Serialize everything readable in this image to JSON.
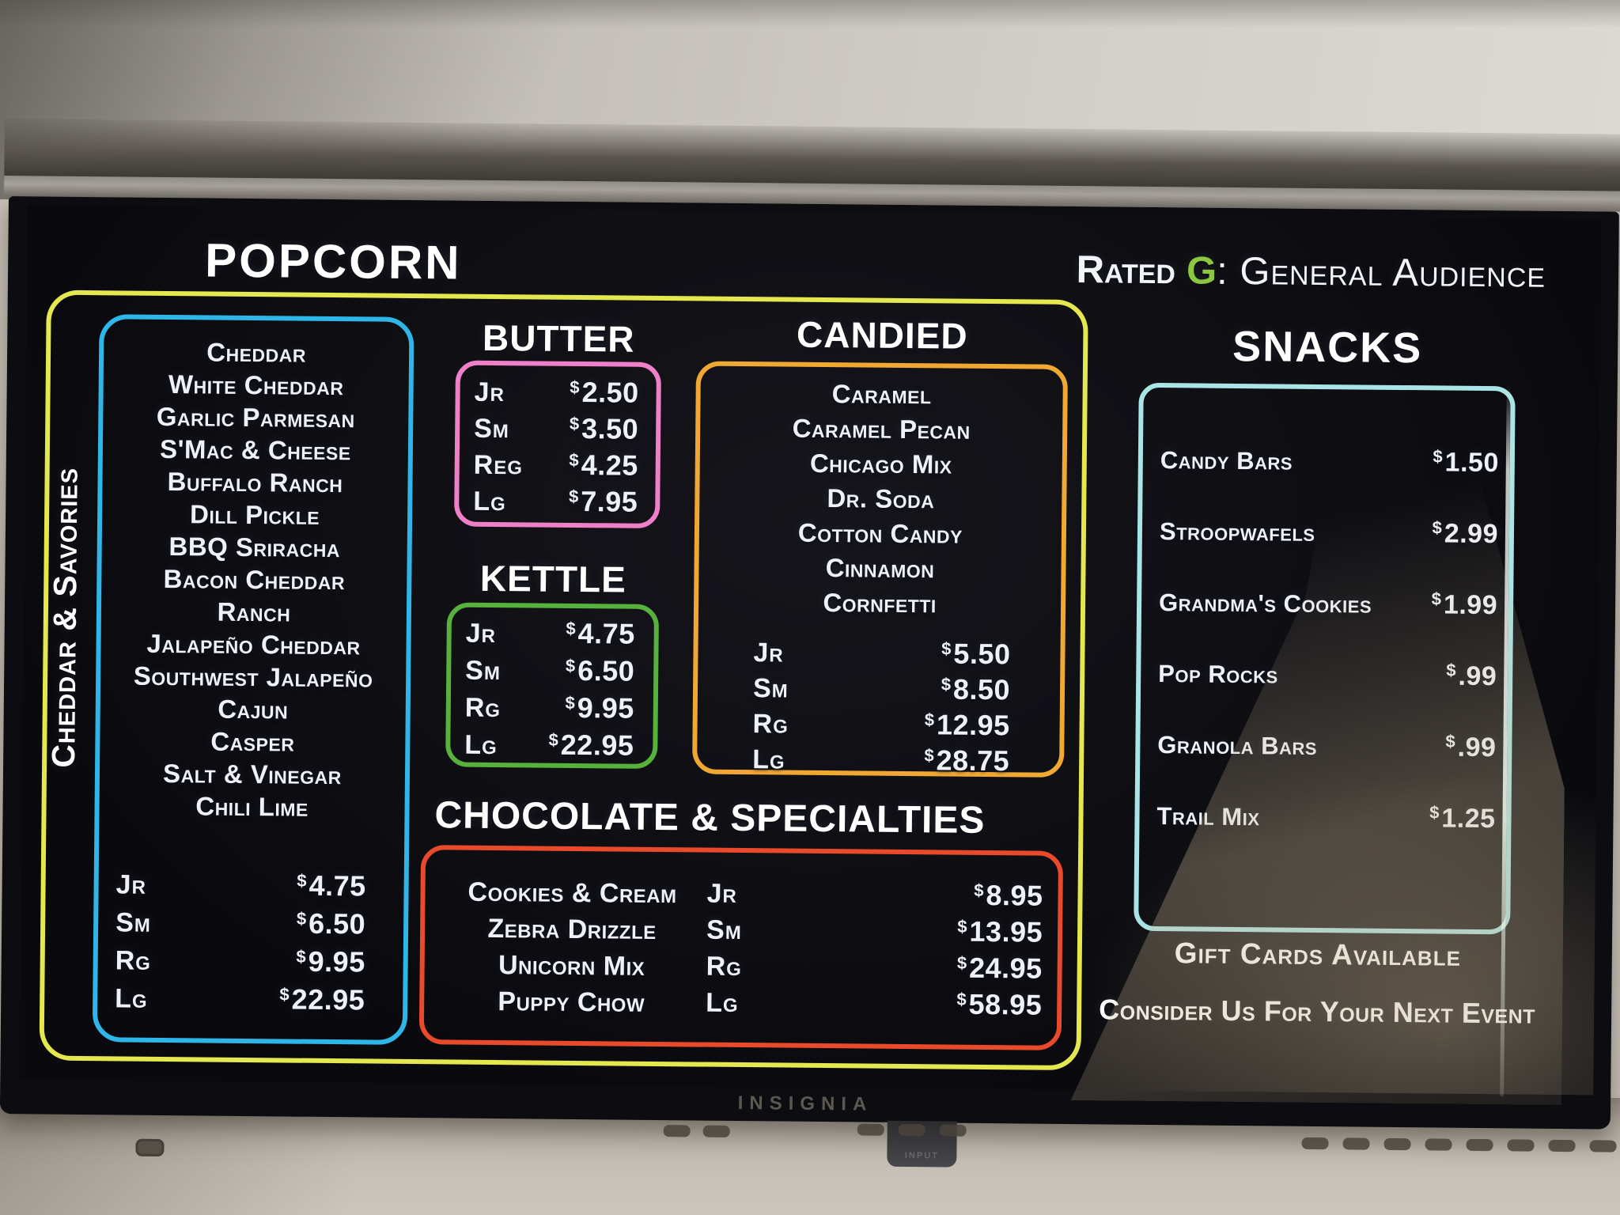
{
  "currency": "$",
  "colors": {
    "screen_bg": "#0c0c10",
    "outer_border_yellow": "#e4e74d",
    "cheddar_cyan": "#2eb6e9",
    "butter_pink": "#f07fc9",
    "kettle_green": "#56b23d",
    "candied_orange": "#f0a833",
    "chocolate_red": "#ea4a2c",
    "snacks_cyan": "#a9e4e6",
    "rated_g_green": "#8dc63f",
    "text": "#eef1f7"
  },
  "header": {
    "title": "POPCORN",
    "rated_prefix": "Rated",
    "rated_letter": "G",
    "rated_suffix": ": General Audience"
  },
  "cheddar_savories": {
    "label": "Cheddar & Savories",
    "flavors": [
      "Cheddar",
      "White Cheddar",
      "Garlic Parmesan",
      "S'Mac & Cheese",
      "Buffalo Ranch",
      "Dill Pickle",
      "BBQ Sriracha",
      "Bacon Cheddar",
      "Ranch",
      "Jalapeño Cheddar",
      "Southwest Jalapeño",
      "Cajun",
      "Casper",
      "Salt & Vinegar",
      "Chili Lime"
    ],
    "rows": [
      {
        "size": "Jr",
        "amount": "4.75"
      },
      {
        "size": "Sm",
        "amount": "6.50"
      },
      {
        "size": "Rg",
        "amount": "9.95"
      },
      {
        "size": "Lg",
        "amount": "22.95"
      }
    ]
  },
  "butter": {
    "title": "BUTTER",
    "rows": [
      {
        "size": "Jr",
        "amount": "2.50"
      },
      {
        "size": "Sm",
        "amount": "3.50"
      },
      {
        "size": "Reg",
        "amount": "4.25"
      },
      {
        "size": "Lg",
        "amount": "7.95"
      }
    ]
  },
  "kettle": {
    "title": "KETTLE",
    "rows": [
      {
        "size": "Jr",
        "amount": "4.75"
      },
      {
        "size": "Sm",
        "amount": "6.50"
      },
      {
        "size": "Rg",
        "amount": "9.95"
      },
      {
        "size": "Lg",
        "amount": "22.95"
      }
    ]
  },
  "candied": {
    "title": "CANDIED",
    "flavors": [
      "Caramel",
      "Caramel Pecan",
      "Chicago Mix",
      "Dr. Soda",
      "Cotton Candy",
      "Cinnamon",
      "Cornfetti"
    ],
    "rows": [
      {
        "size": "Jr",
        "amount": "5.50"
      },
      {
        "size": "Sm",
        "amount": "8.50"
      },
      {
        "size": "Rg",
        "amount": "12.95"
      },
      {
        "size": "Lg",
        "amount": "28.75"
      }
    ]
  },
  "chocolate": {
    "title": "CHOCOLATE & SPECIALTIES",
    "flavors": [
      "Cookies & Cream",
      "Zebra Drizzle",
      "Unicorn Mix",
      "Puppy Chow"
    ],
    "rows": [
      {
        "size": "Jr",
        "amount": "8.95"
      },
      {
        "size": "Sm",
        "amount": "13.95"
      },
      {
        "size": "Rg",
        "amount": "24.95"
      },
      {
        "size": "Lg",
        "amount": "58.95"
      }
    ]
  },
  "snacks": {
    "title": "SNACKS",
    "items": [
      {
        "name": "Candy Bars",
        "amount": "1.50"
      },
      {
        "name": "Stroopwafels",
        "amount": "2.99"
      },
      {
        "name": "Grandma's Cookies",
        "amount": "1.99"
      },
      {
        "name": "Pop Rocks",
        "amount": ".99"
      },
      {
        "name": "Granola Bars",
        "amount": ".99"
      },
      {
        "name": "Trail Mix",
        "amount": "1.25"
      }
    ]
  },
  "footer": {
    "line1": "Gift Cards Available",
    "line2": "Consider Us For Your Next Event"
  },
  "tv": {
    "brand": "INSIGNIA",
    "input_label": "INPUT"
  }
}
